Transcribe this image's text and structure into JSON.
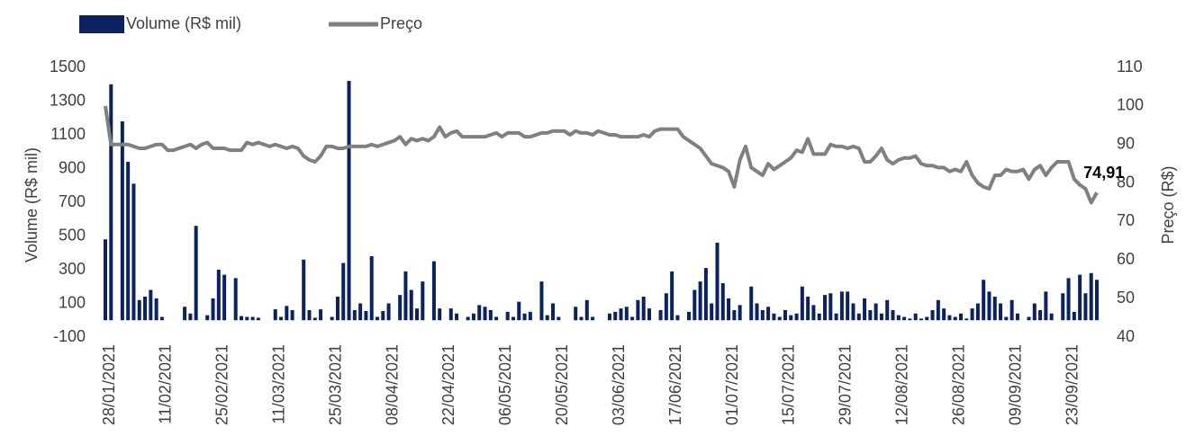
{
  "chart_data": {
    "type": "bar",
    "categories": [
      "28/01/2021",
      null,
      null,
      null,
      null,
      null,
      null,
      null,
      null,
      null,
      "11/02/2021",
      null,
      null,
      null,
      null,
      null,
      null,
      null,
      null,
      null,
      "25/02/2021",
      null,
      null,
      null,
      null,
      null,
      null,
      null,
      null,
      null,
      "11/03/2021",
      null,
      null,
      null,
      null,
      null,
      null,
      null,
      null,
      null,
      "25/03/2021",
      null,
      null,
      null,
      null,
      null,
      null,
      null,
      null,
      null,
      "08/04/2021",
      null,
      null,
      null,
      null,
      null,
      null,
      null,
      null,
      null,
      "22/04/2021",
      null,
      null,
      null,
      null,
      null,
      null,
      null,
      null,
      null,
      "06/05/2021",
      null,
      null,
      null,
      null,
      null,
      null,
      null,
      null,
      null,
      "20/05/2021",
      null,
      null,
      null,
      null,
      null,
      null,
      null,
      null,
      null,
      "03/06/2021",
      null,
      null,
      null,
      null,
      null,
      null,
      null,
      null,
      null,
      "17/06/2021",
      null,
      null,
      null,
      null,
      null,
      null,
      null,
      null,
      null,
      "01/07/2021",
      null,
      null,
      null,
      null,
      null,
      null,
      null,
      null,
      null,
      "15/07/2021",
      null,
      null,
      null,
      null,
      null,
      null,
      null,
      null,
      null,
      "29/07/2021",
      null,
      null,
      null,
      null,
      null,
      null,
      null,
      null,
      null,
      "12/08/2021",
      null,
      null,
      null,
      null,
      null,
      null,
      null,
      null,
      null,
      "26/08/2021",
      null,
      null,
      null,
      null,
      null,
      null,
      null,
      null,
      null,
      "09/09/2021",
      null,
      null,
      null,
      null,
      null,
      null,
      null,
      null,
      null,
      "23/09/2021",
      null,
      null,
      null,
      null,
      null
    ],
    "series": [
      {
        "name": "Volume (R$ mil)",
        "type": "bar",
        "color": "#0b2260",
        "values": [
          480,
          1400,
          0,
          1180,
          940,
          810,
          120,
          140,
          180,
          130,
          20,
          0,
          0,
          0,
          80,
          40,
          560,
          0,
          30,
          130,
          300,
          270,
          0,
          250,
          25,
          20,
          20,
          15,
          0,
          0,
          65,
          20,
          85,
          60,
          0,
          360,
          60,
          15,
          65,
          0,
          20,
          140,
          340,
          1420,
          60,
          100,
          55,
          380,
          20,
          55,
          100,
          0,
          150,
          290,
          180,
          70,
          230,
          0,
          350,
          70,
          0,
          70,
          40,
          0,
          20,
          40,
          90,
          80,
          60,
          20,
          0,
          50,
          20,
          110,
          40,
          50,
          0,
          230,
          30,
          100,
          20,
          0,
          0,
          80,
          20,
          120,
          20,
          0,
          0,
          40,
          50,
          70,
          80,
          20,
          120,
          140,
          70,
          0,
          60,
          160,
          290,
          30,
          0,
          50,
          180,
          230,
          310,
          100,
          460,
          220,
          130,
          60,
          90,
          0,
          200,
          100,
          60,
          80,
          40,
          20,
          60,
          30,
          40,
          200,
          140,
          90,
          40,
          150,
          160,
          40,
          170,
          170,
          100,
          40,
          130,
          60,
          100,
          40,
          120,
          60,
          30,
          20,
          10,
          40,
          10,
          20,
          60,
          120,
          70,
          30,
          20,
          40,
          10,
          70,
          100,
          240,
          170,
          140,
          100,
          20,
          120,
          40,
          0,
          20,
          100,
          60,
          170,
          40,
          0,
          160,
          250,
          50,
          270,
          160,
          280,
          240
        ]
      },
      {
        "name": "Preço",
        "type": "line",
        "axis": "y2",
        "color": "#808080",
        "values": [
          100,
          90,
          90,
          90,
          90,
          89.5,
          89,
          89,
          89.5,
          90,
          90,
          88.5,
          88.5,
          89,
          89.5,
          90,
          89,
          90,
          90.5,
          89,
          89,
          89,
          88.5,
          88.5,
          88.5,
          90.5,
          90,
          90.5,
          90,
          89.5,
          90,
          89.5,
          89,
          89.5,
          89,
          87,
          86,
          85.5,
          87,
          89.5,
          89.5,
          89,
          89,
          89.5,
          89.5,
          89.5,
          89.5,
          90,
          89.5,
          90,
          90.5,
          91,
          92,
          90,
          91.5,
          91,
          91.5,
          91,
          92,
          94.5,
          92,
          93,
          93.5,
          92,
          92,
          92,
          92,
          92,
          92.5,
          93,
          92,
          93,
          93,
          93,
          92,
          92,
          92.5,
          93,
          93,
          93.5,
          93.5,
          93.5,
          92.5,
          93.5,
          93,
          93,
          92.5,
          93.5,
          93,
          92.5,
          92.5,
          92,
          92,
          92,
          92,
          92.5,
          92,
          93.5,
          94,
          94,
          94,
          94,
          92,
          91,
          90,
          89,
          87,
          85,
          84.5,
          84,
          83,
          79,
          86,
          89.5,
          84,
          83,
          82,
          85,
          83.5,
          84.5,
          85.5,
          86.5,
          88.5,
          88,
          91.5,
          87.5,
          87.5,
          87.5,
          90,
          89.5,
          89.5,
          89,
          89.5,
          89,
          85.5,
          85.5,
          87,
          89,
          86,
          85,
          86,
          86.5,
          86.5,
          87,
          85,
          84.5,
          84.5,
          84,
          84,
          83,
          83.5,
          83,
          85.5,
          82,
          80,
          79,
          78.5,
          82,
          82,
          83.5,
          83,
          83,
          83.5,
          81,
          83.5,
          84.5,
          82,
          84,
          85.5,
          85.5,
          85.5,
          81,
          79.5,
          78.5,
          74.91,
          77.5
        ],
        "value_labels": [
          null,
          null,
          null,
          null,
          null,
          null,
          null,
          null,
          null,
          null,
          null,
          null,
          null,
          null,
          null,
          null,
          null,
          null,
          null,
          null,
          null,
          null,
          null,
          null,
          null,
          null,
          null,
          null,
          null,
          null,
          null,
          null,
          null,
          null,
          null,
          null,
          null,
          null,
          null,
          null,
          null,
          null,
          null,
          null,
          null,
          null,
          null,
          null,
          null,
          null,
          null,
          null,
          null,
          null,
          null,
          null,
          null,
          null,
          null,
          null,
          null,
          null,
          null,
          null,
          null,
          null,
          null,
          null,
          null,
          null,
          null,
          null,
          null,
          null,
          null,
          null,
          null,
          null,
          null,
          null,
          null,
          null,
          null,
          null,
          null,
          null,
          null,
          null,
          null,
          null,
          null,
          null,
          null,
          null,
          null,
          null,
          null,
          null,
          null,
          null,
          null,
          null,
          null,
          null,
          null,
          null,
          null,
          null,
          null,
          null,
          null,
          null,
          null,
          null,
          null,
          null,
          null,
          null,
          null,
          null,
          null,
          null,
          null,
          null,
          null,
          null,
          null,
          null,
          null,
          null,
          null,
          null,
          null,
          null,
          null,
          null,
          null,
          null,
          null,
          null,
          null,
          null,
          null,
          null,
          null,
          null,
          null,
          null,
          null,
          null,
          null,
          null,
          null,
          null,
          null,
          null,
          null,
          null,
          null,
          null,
          null,
          null,
          null,
          null,
          null,
          null,
          null,
          null,
          null,
          null,
          null,
          null,
          null,
          null,
          "74,91",
          null
        ]
      }
    ],
    "y_label": "Volume (R$ mil)",
    "y2_label": "Preço (R$)",
    "ylim": [
      -100,
      1500
    ],
    "yticks": [
      -100,
      100,
      300,
      500,
      700,
      900,
      1100,
      1300,
      1500
    ],
    "y2lim": [
      40,
      110
    ],
    "y2ticks": [
      40,
      50,
      60,
      70,
      80,
      90,
      100,
      110
    ],
    "grid": false,
    "legend": "top-left"
  }
}
